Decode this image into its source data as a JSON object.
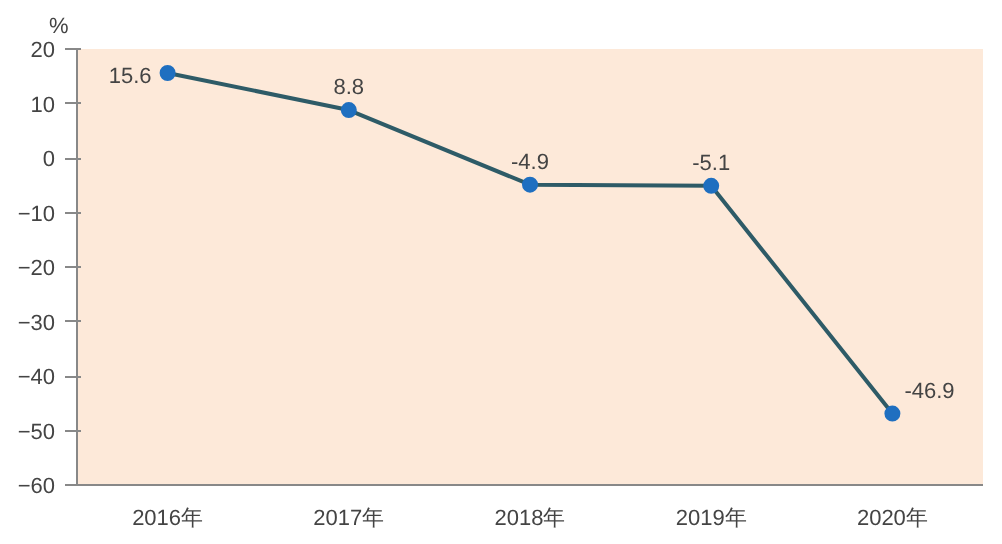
{
  "chart_data": {
    "type": "line",
    "ylabel": "%",
    "categories": [
      "2016年",
      "2017年",
      "2018年",
      "2019年",
      "2020年"
    ],
    "series": [
      {
        "color": "#2e5b67",
        "values": [
          15.6,
          8.8,
          -4.9,
          -5.1,
          -46.9
        ]
      }
    ],
    "marker": "circle",
    "data_labels": true,
    "grid": false,
    "ylim": [
      -60,
      20
    ],
    "yticks": [
      -60,
      -50,
      -40,
      -30,
      -20,
      -10,
      0,
      10,
      20
    ]
  }
}
